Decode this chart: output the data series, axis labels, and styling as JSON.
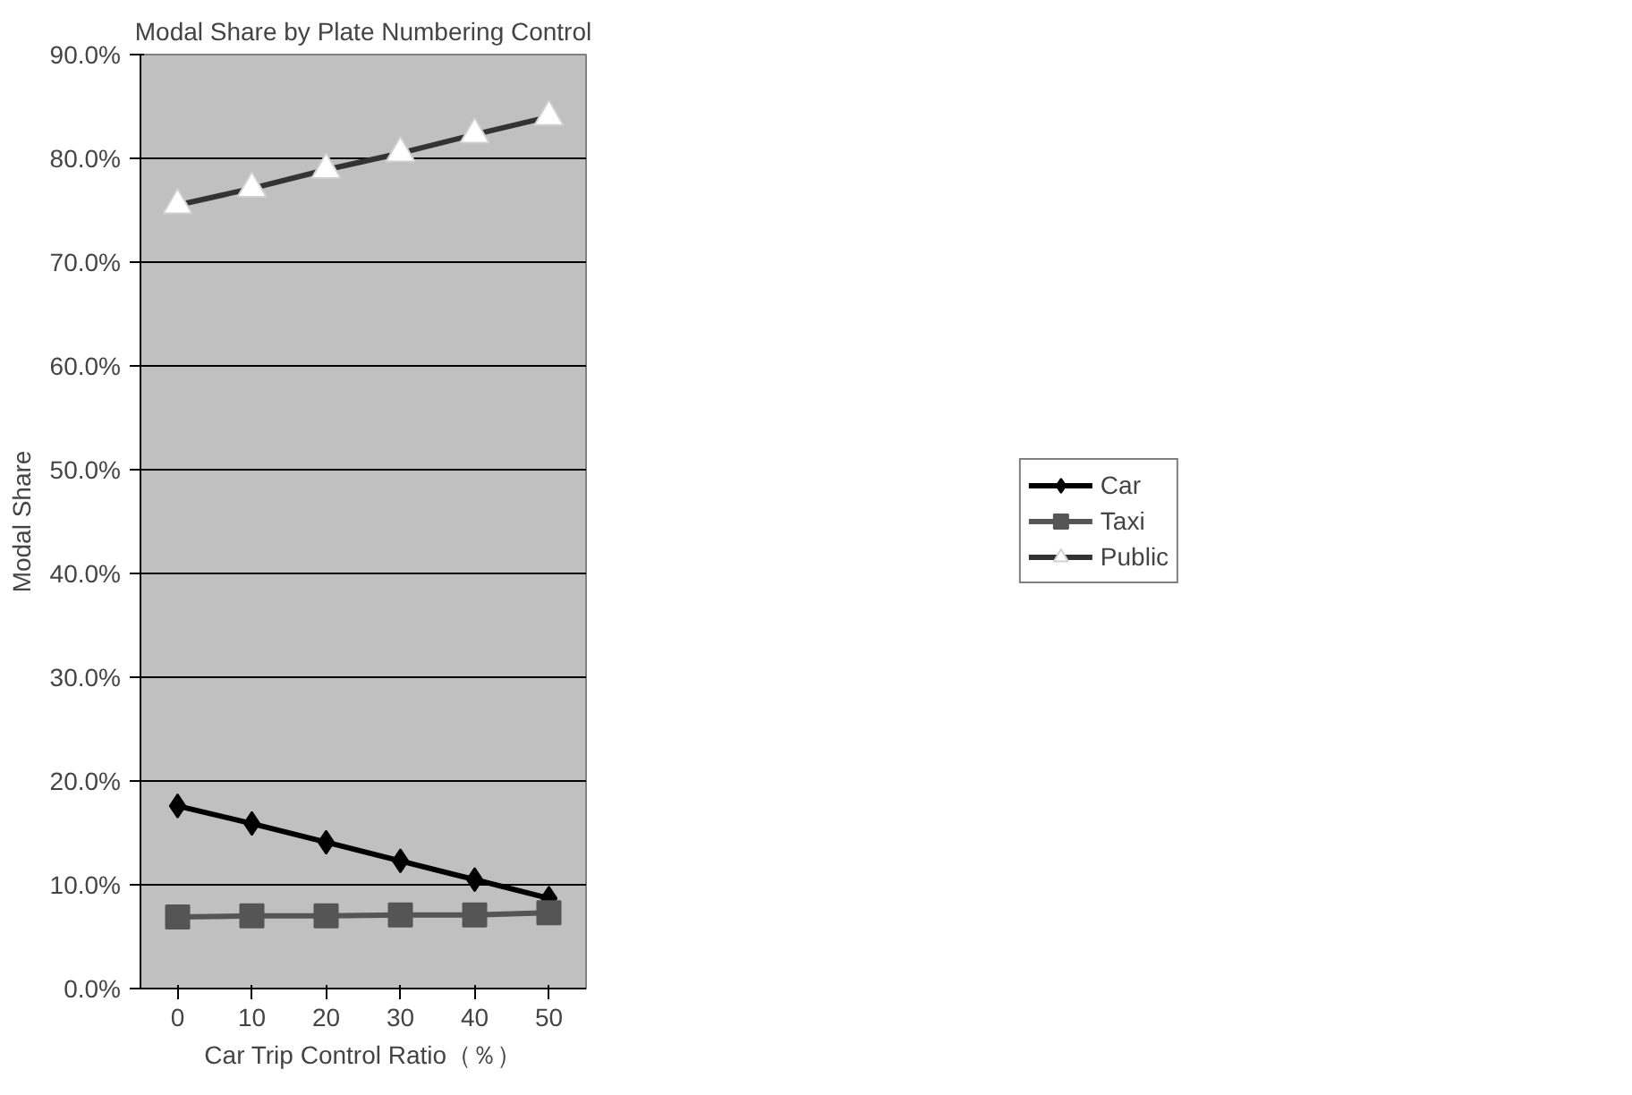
{
  "chart_data": {
    "type": "line",
    "title": "Modal Share by Plate Numbering Control",
    "xlabel": "Car Trip Control Ratio（％）",
    "ylabel": "Modal Share",
    "categories": [
      "0",
      "10",
      "20",
      "30",
      "40",
      "50"
    ],
    "series": [
      {
        "name": "Car",
        "color": "#000000",
        "marker": "diamond",
        "values": [
          17.6,
          15.9,
          14.1,
          12.3,
          10.5,
          8.7
        ]
      },
      {
        "name": "Taxi",
        "color": "#555555",
        "marker": "square",
        "values": [
          6.9,
          7.0,
          7.0,
          7.1,
          7.1,
          7.3
        ]
      },
      {
        "name": "Public",
        "color": "#333333",
        "marker": "triangle",
        "values": [
          75.5,
          77.1,
          78.9,
          80.5,
          82.3,
          84.0
        ]
      }
    ],
    "ylim": [
      0,
      90
    ],
    "yticks": [
      {
        "value": 0,
        "label": "0.0%"
      },
      {
        "value": 10,
        "label": "10.0%"
      },
      {
        "value": 20,
        "label": "20.0%"
      },
      {
        "value": 30,
        "label": "30.0%"
      },
      {
        "value": 40,
        "label": "40.0%"
      },
      {
        "value": 50,
        "label": "50.0%"
      },
      {
        "value": 60,
        "label": "60.0%"
      },
      {
        "value": 70,
        "label": "70.0%"
      },
      {
        "value": 80,
        "label": "80.0%"
      },
      {
        "value": 90,
        "label": "90.0%"
      }
    ],
    "grid": "y",
    "legend": "right",
    "line_style": "solid"
  }
}
